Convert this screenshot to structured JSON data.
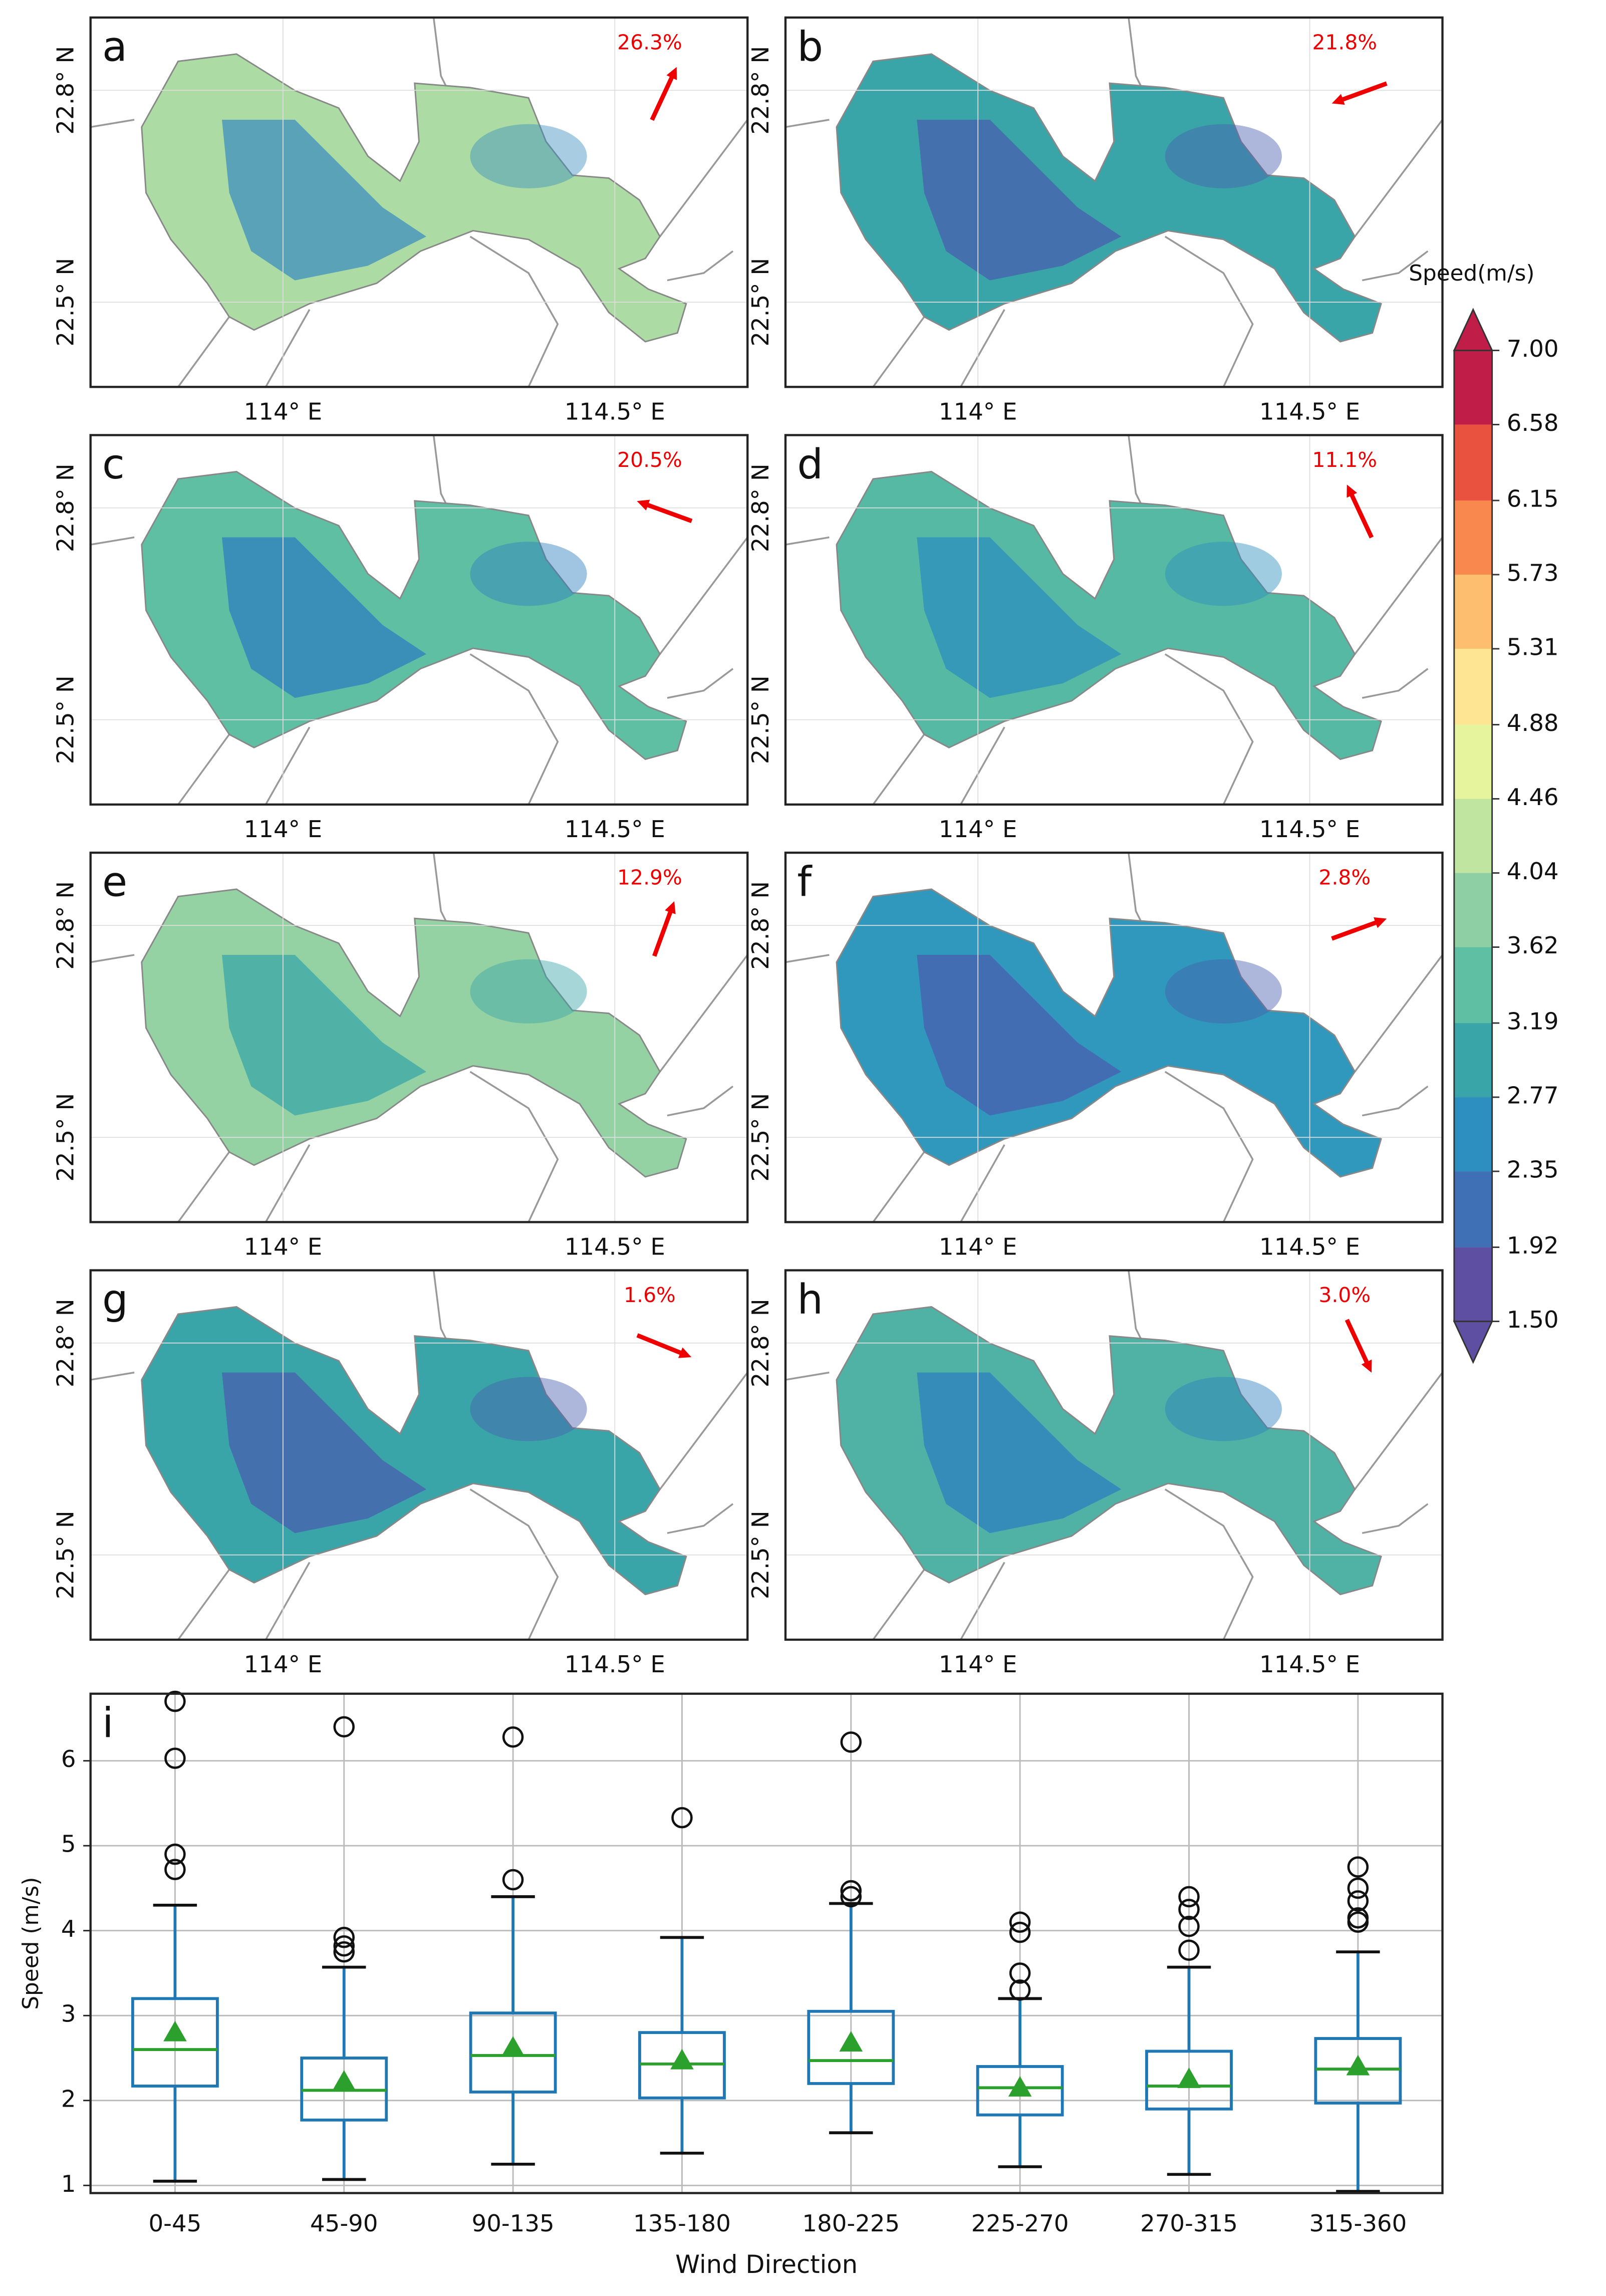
{
  "chart_data": [
    {
      "type": "map",
      "xlim": [
        113.71,
        114.7
      ],
      "ylim": [
        22.38,
        22.903
      ],
      "xticks": [
        {
          "value": 114,
          "label": "114° E"
        },
        {
          "value": 114.5,
          "label": "114.5° E"
        }
      ],
      "yticks": [
        {
          "value": 22.5,
          "label": "22.5° N"
        },
        {
          "value": 22.8,
          "label": "22.8° N"
        }
      ],
      "panels": [
        {
          "label": "a",
          "frequency_label": "26.3%",
          "arrow_bearing": 25,
          "color": "#acdca3",
          "shade_color": "#3f8fbf"
        },
        {
          "label": "b",
          "frequency_label": "21.8%",
          "arrow_bearing": 250,
          "color": "#3aa5a8",
          "shade_color": "#4a5fb0"
        },
        {
          "label": "c",
          "frequency_label": "20.5%",
          "arrow_bearing": 290,
          "color": "#5fbfa3",
          "shade_color": "#2c7fbf"
        },
        {
          "label": "d",
          "frequency_label": "11.1%",
          "arrow_bearing": 335,
          "color": "#56b9a3",
          "shade_color": "#2c8fbf"
        },
        {
          "label": "e",
          "frequency_label": "12.9%",
          "arrow_bearing": 20,
          "color": "#94d2a4",
          "shade_color": "#3aa5a8"
        },
        {
          "label": "f",
          "frequency_label": "2.8%",
          "arrow_bearing": 70,
          "color": "#2f98bc",
          "shade_color": "#4a5fb0"
        },
        {
          "label": "g",
          "frequency_label": "1.6%",
          "arrow_bearing": 112,
          "color": "#3aa5a8",
          "shade_color": "#4a5fb0"
        },
        {
          "label": "h",
          "frequency_label": "3.0%",
          "arrow_bearing": 155,
          "color": "#4fb2a5",
          "shade_color": "#2c7fbf"
        }
      ]
    },
    {
      "type": "colorbar",
      "title": "Speed(m/s)",
      "ticks": [
        {
          "value": 1.5,
          "label": "1.50"
        },
        1.92,
        2.35,
        2.77,
        3.19,
        3.62,
        4.04,
        4.46,
        4.88,
        5.31,
        5.73,
        6.15,
        6.58,
        {
          "value": 7,
          "label": "7.00"
        }
      ],
      "colors": [
        "#5e4fa2",
        "#3f6fb5",
        "#2c8fbf",
        "#3aa5a8",
        "#5fbfa3",
        "#8fcfa4",
        "#bfe5a0",
        "#e6f59d",
        "#fee593",
        "#fdbf6f",
        "#f9884f",
        "#e8523f",
        "#c01e49"
      ]
    },
    {
      "type": "box",
      "label": "i",
      "xlabel": "Wind Direction",
      "ylabel": "Speed (m/s)",
      "ylim": [
        0.91,
        6.79
      ],
      "yticks": [
        1,
        2,
        3,
        4,
        5,
        6
      ],
      "grid": true,
      "categories": [
        "0-45",
        "45-90",
        "90-135",
        "135-180",
        "180-225",
        "225-270",
        "270-315",
        "315-360"
      ],
      "boxes": [
        {
          "whisker_low": 1.05,
          "q1": 2.17,
          "median": 2.6,
          "q3": 3.2,
          "whisker_high": 4.3,
          "mean": 2.8,
          "outliers": [
            4.72,
            4.9,
            6.03,
            6.7
          ]
        },
        {
          "whisker_low": 1.07,
          "q1": 1.77,
          "median": 2.12,
          "q3": 2.5,
          "whisker_high": 3.57,
          "mean": 2.22,
          "outliers": [
            3.75,
            3.82,
            3.92,
            6.4
          ]
        },
        {
          "whisker_low": 1.25,
          "q1": 2.1,
          "median": 2.53,
          "q3": 3.03,
          "whisker_high": 4.4,
          "mean": 2.62,
          "outliers": [
            4.6,
            6.28
          ]
        },
        {
          "whisker_low": 1.38,
          "q1": 2.03,
          "median": 2.43,
          "q3": 2.8,
          "whisker_high": 3.92,
          "mean": 2.47,
          "outliers": [
            5.33
          ]
        },
        {
          "whisker_low": 1.62,
          "q1": 2.2,
          "median": 2.47,
          "q3": 3.05,
          "whisker_high": 4.32,
          "mean": 2.68,
          "outliers": [
            4.4,
            4.47,
            6.22
          ]
        },
        {
          "whisker_low": 1.22,
          "q1": 1.83,
          "median": 2.15,
          "q3": 2.4,
          "whisker_high": 3.2,
          "mean": 2.15,
          "outliers": [
            3.3,
            3.5,
            3.98,
            4.1
          ]
        },
        {
          "whisker_low": 1.13,
          "q1": 1.9,
          "median": 2.17,
          "q3": 2.58,
          "whisker_high": 3.57,
          "mean": 2.25,
          "outliers": [
            3.77,
            4.05,
            4.25,
            4.4
          ]
        },
        {
          "whisker_low": 0.93,
          "q1": 1.97,
          "median": 2.37,
          "q3": 2.73,
          "whisker_high": 3.75,
          "mean": 2.4,
          "outliers": [
            4.1,
            4.15,
            4.35,
            4.5,
            4.75
          ]
        }
      ],
      "box_color": "#1f77b4",
      "median_color": "#2ca02c",
      "mean_color": "#2ca02c"
    }
  ]
}
